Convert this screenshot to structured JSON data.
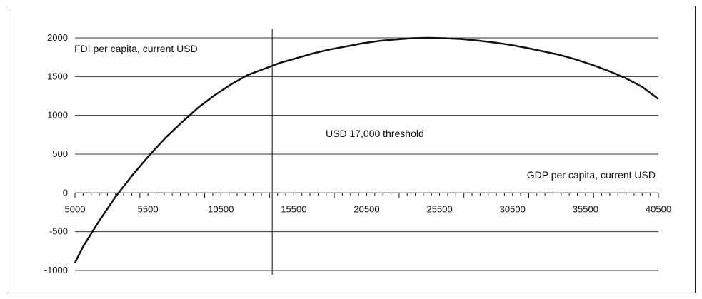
{
  "chart_data": {
    "type": "line",
    "title": "",
    "ylabel": "FDI per capita, current USD",
    "xlabel": "GDP per capita, current USD",
    "annotation": "USD 17,000 threshold",
    "threshold_x": 17000,
    "xlim": [
      5000,
      40500
    ],
    "ylim": [
      -1000,
      2000
    ],
    "x_tick_labels": [
      "5000",
      "5500",
      "10500",
      "15500",
      "20500",
      "25500",
      "30500",
      "35500",
      "40500"
    ],
    "y_ticks": [
      -1000,
      -500,
      0,
      500,
      1000,
      1500,
      2000
    ],
    "y_tick_labels": [
      "-1000",
      "-500",
      "0",
      "500",
      "1000",
      "1500",
      "2000"
    ],
    "grid": "horizontal",
    "line_color": "#111111",
    "series": [
      {
        "x": [
          5000,
          5500,
          6500,
          7500,
          8500,
          9500,
          10500,
          11500,
          12500,
          13500,
          14500,
          15500,
          16500,
          17500,
          18500,
          19500,
          20500,
          21500,
          22500,
          23500,
          24500,
          25500,
          26500,
          27500,
          28500,
          29500,
          30500,
          31500,
          32500,
          33500,
          34500,
          35500,
          36500,
          37500,
          38500,
          39500,
          40500
        ],
        "y": [
          -900,
          -690,
          -350,
          -40,
          230,
          480,
          710,
          910,
          1100,
          1260,
          1400,
          1520,
          1600,
          1680,
          1740,
          1800,
          1850,
          1890,
          1930,
          1960,
          1980,
          1995,
          2000,
          1995,
          1985,
          1965,
          1940,
          1910,
          1870,
          1825,
          1780,
          1720,
          1650,
          1570,
          1480,
          1370,
          1210
        ]
      }
    ]
  }
}
